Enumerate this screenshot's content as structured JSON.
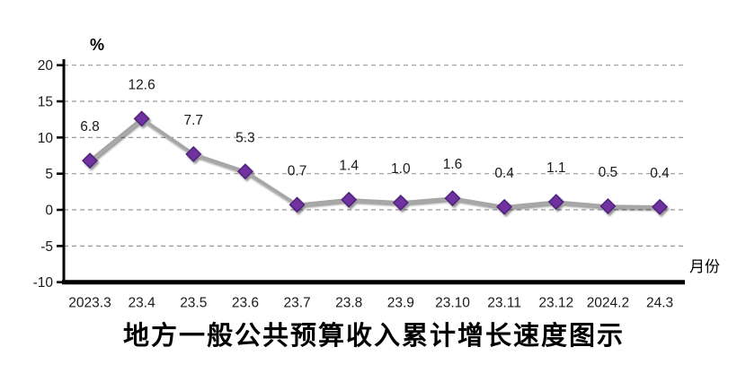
{
  "chart_data": {
    "type": "line",
    "title": "地方一般公共预算收入累计增长速度图示",
    "unit_label": "%",
    "x_axis_right_label": "月份",
    "categories": [
      "2023.3",
      "23.4",
      "23.5",
      "23.6",
      "23.7",
      "23.8",
      "23.9",
      "23.10",
      "23.11",
      "23.12",
      "2024.2",
      "24.3"
    ],
    "values": [
      6.8,
      12.6,
      7.7,
      5.3,
      0.7,
      1.4,
      1.0,
      1.6,
      0.4,
      1.1,
      0.5,
      0.4
    ],
    "value_labels": [
      "6.8",
      "12.6",
      "7.7",
      "5.3",
      "0.7",
      "1.4",
      "1.0",
      "1.6",
      "0.4",
      "1.1",
      "0.5",
      "0.4"
    ],
    "y_ticks": [
      20,
      15,
      10,
      5,
      0,
      -5,
      -10
    ],
    "ylim": [
      -10,
      20
    ],
    "xlabel": "",
    "ylabel": "%",
    "grid": "horizontal-dashed",
    "legend": "none",
    "marker": "diamond",
    "colors": {
      "marker_fill": "#7030A0",
      "marker_stroke": "#4E2077",
      "line": "#A6A6A6",
      "grid": "#999999",
      "axis": "#000000",
      "text": "#000000",
      "background": "#FFFFFF"
    }
  }
}
